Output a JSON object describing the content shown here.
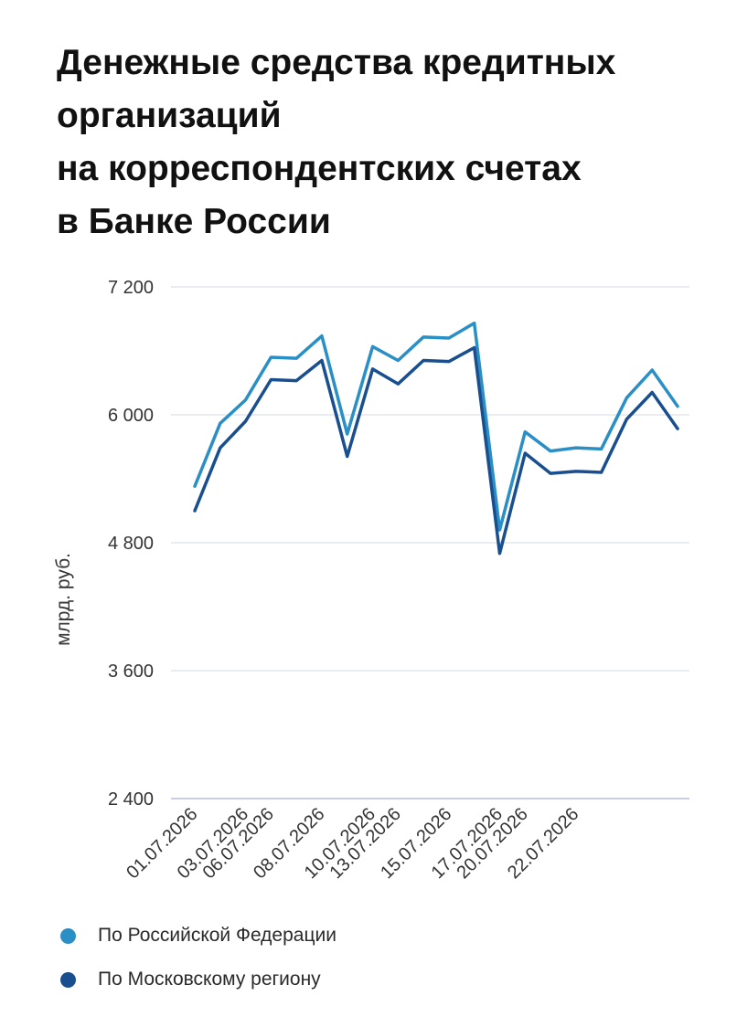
{
  "title_lines": [
    "Денежные средства кредитных",
    "организаций",
    "на корреспондентских счетах",
    "в Банке России"
  ],
  "chart_data": {
    "type": "line",
    "title": "Денежные средства кредитных организаций на корреспондентских счетах в Банке России",
    "ylabel": "млрд. руб.",
    "ylim": [
      2400,
      7200
    ],
    "yticks": [
      2400,
      3600,
      4800,
      6000,
      7200
    ],
    "ytick_labels": [
      "2 400",
      "3 600",
      "4 800",
      "6 000",
      "7 200"
    ],
    "x": [
      "01.07.2026",
      "02.07.2026",
      "03.07.2026",
      "06.07.2026",
      "07.07.2026",
      "08.07.2026",
      "09.07.2026",
      "10.07.2026",
      "13.07.2026",
      "14.07.2026",
      "15.07.2026",
      "16.07.2026",
      "17.07.2026",
      "20.07.2026",
      "21.07.2026",
      "22.07.2026",
      "23.07.2026",
      "24.07.2026",
      "27.07.2026",
      "28.07.2026"
    ],
    "xtick_labels": [
      "01.07.2026",
      "03.07.2026",
      "06.07.2026",
      "08.07.2026",
      "10.07.2026",
      "13.07.2026",
      "15.07.2026",
      "17.07.2026",
      "20.07.2026",
      "22.07.2026"
    ],
    "grid": true,
    "legend_position": "bottom",
    "series": [
      {
        "name": "По Российской Федерации",
        "color": "#2a8fc5",
        "values": [
          5330,
          5920,
          6140,
          6540,
          6530,
          6740,
          5820,
          6640,
          6510,
          6730,
          6720,
          6860,
          4920,
          5840,
          5660,
          5690,
          5680,
          6160,
          6420,
          6080
        ]
      },
      {
        "name": "По Московскому региону",
        "color": "#1a4f8f",
        "values": [
          5100,
          5690,
          5940,
          6330,
          6320,
          6510,
          5610,
          6430,
          6290,
          6510,
          6500,
          6630,
          4700,
          5640,
          5450,
          5470,
          5460,
          5960,
          6210,
          5870
        ]
      }
    ]
  }
}
